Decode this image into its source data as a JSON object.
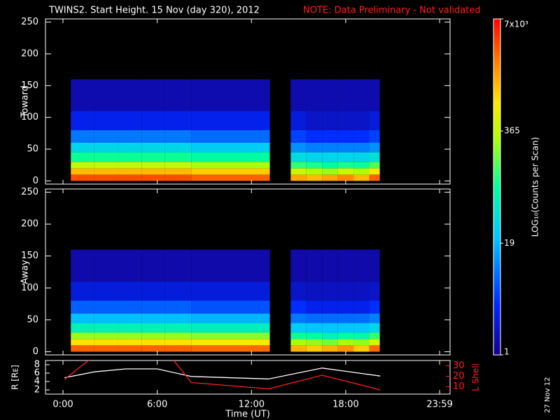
{
  "header": {
    "title": "TWINS2. Start Height. 15 Nov (day 320), 2012",
    "note": "NOTE: Data Preliminary - Not validated",
    "date": "27 Nov 12"
  },
  "chart_data": [
    {
      "type": "heatmap",
      "ylabel": "Toward",
      "ylim": [
        -5,
        255
      ],
      "yticks": [
        0,
        50,
        100,
        150,
        200,
        250
      ],
      "xbins": [
        0.5,
        2,
        3.5,
        5,
        6.5,
        8.17,
        13.17,
        14.5,
        15.5,
        16.5,
        17.5,
        18.5,
        19.5,
        20.17
      ],
      "ybins": [
        0,
        10,
        20,
        30,
        45,
        60,
        80,
        110,
        160
      ],
      "z": [
        [
          3500,
          3500,
          3500,
          3500,
          3500,
          3000,
          null,
          1500,
          1200,
          1500,
          2000,
          1200,
          3000
        ],
        [
          1200,
          1200,
          1200,
          1200,
          1200,
          1000,
          null,
          400,
          300,
          250,
          400,
          300,
          700
        ],
        [
          350,
          350,
          350,
          350,
          350,
          300,
          null,
          120,
          100,
          80,
          100,
          90,
          150
        ],
        [
          90,
          90,
          90,
          90,
          90,
          80,
          null,
          35,
          30,
          30,
          30,
          30,
          40
        ],
        [
          30,
          30,
          30,
          30,
          30,
          25,
          null,
          12,
          10,
          10,
          10,
          10,
          12
        ],
        [
          9,
          9,
          9,
          9,
          9,
          8,
          null,
          5,
          4,
          4,
          4,
          4,
          5
        ],
        [
          3,
          3,
          3,
          3,
          3,
          3,
          null,
          2.5,
          2,
          2,
          2,
          2,
          2.5
        ],
        [
          1.5,
          1.5,
          1.5,
          1.5,
          1.5,
          1.5,
          null,
          1.5,
          1.5,
          1.5,
          1.5,
          1.5,
          1.5
        ]
      ]
    },
    {
      "type": "heatmap",
      "ylabel": "Away",
      "ylim": [
        -5,
        255
      ],
      "yticks": [
        0,
        50,
        100,
        150,
        200,
        250
      ],
      "xbins": [
        0.5,
        2,
        3.5,
        5,
        6.5,
        8.17,
        13.17,
        14.5,
        15.5,
        16.5,
        17.5,
        18.5,
        19.5,
        20.17
      ],
      "ybins": [
        0,
        10,
        20,
        30,
        45,
        60,
        80,
        110,
        160
      ],
      "z": [
        [
          3000,
          3000,
          3000,
          3000,
          3000,
          2800,
          null,
          1300,
          1000,
          1300,
          1800,
          1000,
          2800
        ],
        [
          800,
          800,
          800,
          800,
          800,
          700,
          null,
          300,
          250,
          200,
          300,
          250,
          500
        ],
        [
          250,
          250,
          250,
          250,
          250,
          220,
          null,
          90,
          80,
          60,
          80,
          70,
          120
        ],
        [
          60,
          60,
          60,
          60,
          60,
          55,
          null,
          25,
          22,
          22,
          22,
          22,
          30
        ],
        [
          20,
          20,
          20,
          20,
          20,
          18,
          null,
          9,
          8,
          8,
          8,
          8,
          10
        ],
        [
          7,
          7,
          7,
          7,
          7,
          6,
          null,
          4,
          3,
          3,
          3,
          3,
          4
        ],
        [
          2.5,
          2.5,
          2.5,
          2.5,
          2.5,
          2.5,
          null,
          2,
          1.8,
          1.8,
          1.8,
          1.8,
          2
        ],
        [
          1.4,
          1.4,
          1.4,
          1.4,
          1.4,
          1.4,
          null,
          1.4,
          1.4,
          1.4,
          1.4,
          1.4,
          1.4
        ]
      ]
    },
    {
      "type": "colorbar",
      "log": true,
      "label": "LOG₁₀(Counts per Scan)",
      "zlim": [
        1,
        7000
      ],
      "zticks": [
        1,
        19,
        365,
        {
          "value": 7000,
          "label": "7x10³"
        }
      ]
    },
    {
      "type": "line",
      "xlabel": "Time (UT)",
      "ylabel": "R [Rᴇ]",
      "y2label": "L Shell",
      "xlim": [
        0,
        24
      ],
      "xticks": [
        {
          "value": 0,
          "label": "0:00"
        },
        {
          "value": 6,
          "label": "6:00"
        },
        {
          "value": 12,
          "label": "12:00"
        },
        {
          "value": 18,
          "label": "18:00"
        },
        {
          "value": 23.98,
          "label": "23:59"
        }
      ],
      "ylim": [
        1,
        9
      ],
      "yticks": [
        2,
        4,
        6,
        8
      ],
      "y2lim": [
        3,
        35
      ],
      "y2ticks": [
        10,
        20,
        30
      ],
      "series": [
        {
          "color": "#ffffff",
          "x": [
            0.1,
            2,
            4,
            6,
            8.17,
            13.1,
            16.5,
            20.2
          ],
          "values": [
            4.9,
            6.3,
            7,
            7,
            5.2,
            4.6,
            7.2,
            5.3
          ]
        },
        {
          "color": "#ff2020",
          "axis": "y2",
          "x": [
            0.1,
            1.7,
            4,
            7,
            8.17,
            13.1,
            16.5,
            20.2
          ],
          "values": [
            17,
            36,
            null,
            36,
            14,
            8,
            21,
            7
          ]
        }
      ]
    }
  ]
}
